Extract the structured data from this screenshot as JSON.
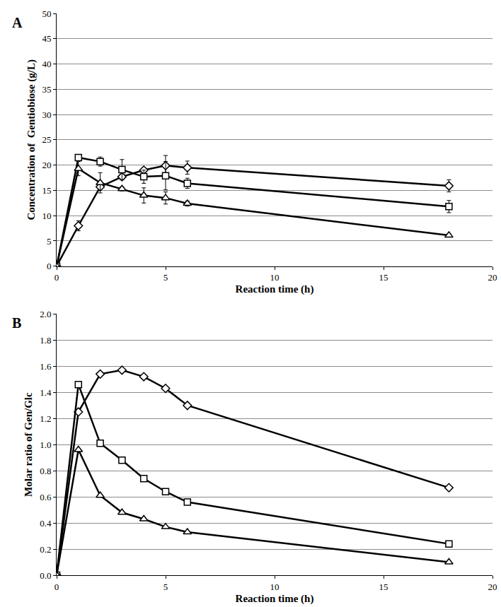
{
  "chart_data": [
    {
      "type": "line",
      "title": "A",
      "x_label": "Reaction time (h)",
      "y_label": "Concentration of  Gentiobiose (g/L)",
      "x": [
        0,
        1,
        2,
        3,
        4,
        5,
        6,
        18
      ],
      "xlim": [
        0,
        20
      ],
      "xticks": [
        0,
        5,
        10,
        15,
        20
      ],
      "ylim": [
        0,
        50
      ],
      "yticks": [
        0,
        5,
        10,
        15,
        20,
        25,
        30,
        35,
        40,
        45,
        50
      ],
      "grid": true,
      "series": [
        {
          "marker": "diamond",
          "color": "#000000",
          "values": [
            0,
            8.0,
            15.7,
            17.7,
            19.0,
            19.9,
            19.5,
            15.9
          ],
          "error": [
            0,
            1.0,
            0.5,
            0.5,
            0.5,
            2.0,
            1.3,
            1.2
          ]
        },
        {
          "marker": "square",
          "color": "#000000",
          "values": [
            0,
            21.5,
            20.7,
            19.1,
            17.7,
            17.9,
            16.4,
            11.8
          ],
          "error": [
            0,
            0.6,
            0.9,
            2.0,
            1.3,
            2.8,
            1.0,
            1.2
          ]
        },
        {
          "marker": "triangle",
          "color": "#000000",
          "values": [
            0,
            19.3,
            16.5,
            15.3,
            14.0,
            13.5,
            12.4,
            6.1
          ],
          "error": [
            0,
            1.4,
            2.0,
            0.4,
            1.5,
            1.2,
            0.5,
            0.3
          ]
        }
      ]
    },
    {
      "type": "line",
      "title": "B",
      "x_label": "Reaction time (h)",
      "y_label": "Molar ratio of Gen/Glc",
      "x": [
        0,
        1,
        2,
        3,
        4,
        5,
        6,
        18
      ],
      "xlim": [
        0,
        20
      ],
      "xticks": [
        0,
        5,
        10,
        15,
        20
      ],
      "ylim": [
        0,
        2.0
      ],
      "yticks": [
        {
          "value": 0,
          "label": "0.0"
        },
        0.2,
        0.4,
        0.6,
        0.8,
        {
          "value": 1,
          "label": "1.0"
        },
        1.2,
        1.4,
        1.6,
        1.8,
        {
          "value": 2,
          "label": "2.0"
        }
      ],
      "grid": true,
      "series": [
        {
          "marker": "diamond",
          "color": "#000000",
          "values": [
            0,
            1.25,
            1.54,
            1.57,
            1.52,
            1.43,
            1.3,
            0.67
          ]
        },
        {
          "marker": "square",
          "color": "#000000",
          "values": [
            0,
            1.46,
            1.01,
            0.88,
            0.74,
            0.64,
            0.56,
            0.24
          ]
        },
        {
          "marker": "triangle",
          "color": "#000000",
          "values": [
            0,
            0.96,
            0.61,
            0.48,
            0.43,
            0.37,
            0.33,
            0.1
          ]
        }
      ]
    }
  ]
}
